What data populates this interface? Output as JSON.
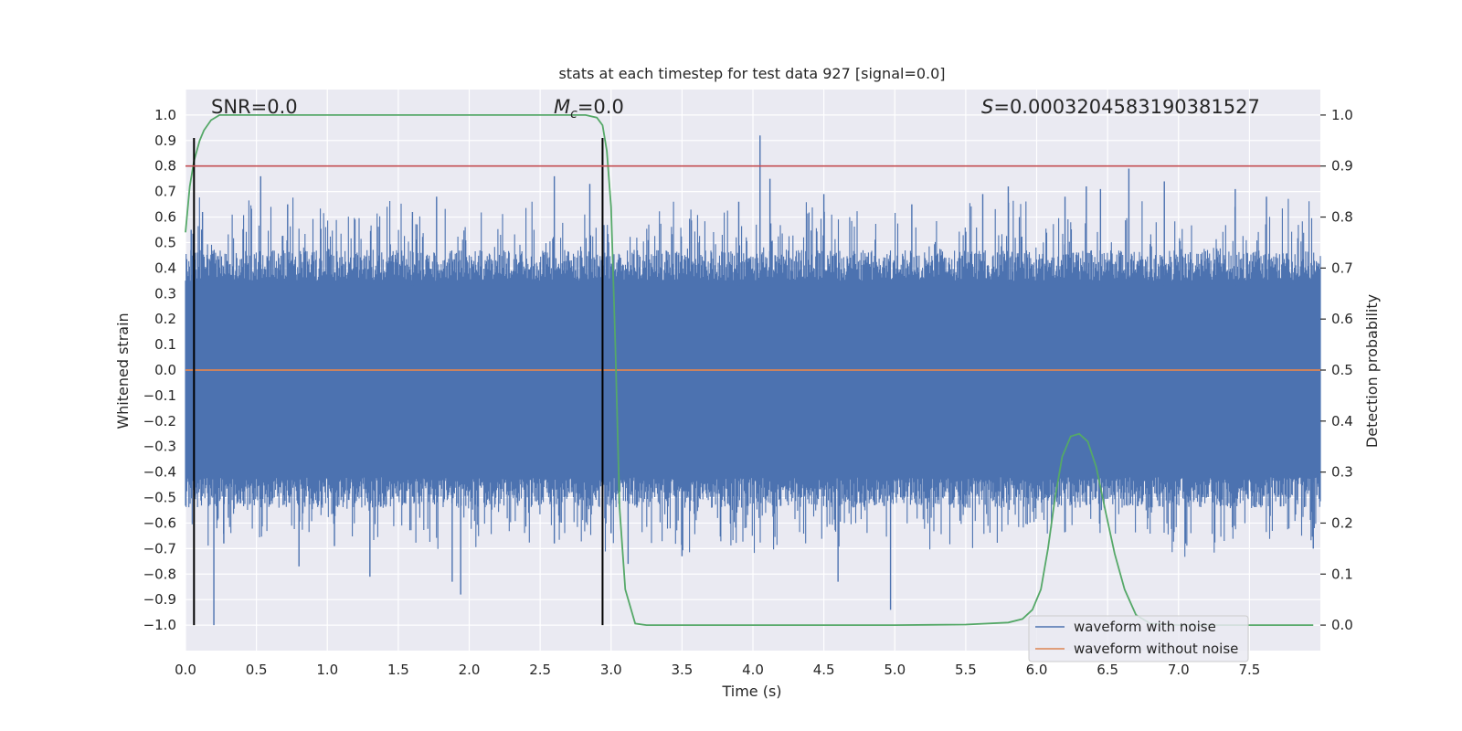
{
  "chart_data": {
    "type": "line",
    "title": "stats at each timestep for test data 927 [signal=0.0]",
    "xlabel": "Time (s)",
    "ylabel": "Whitened strain",
    "y2label": "Detection probability",
    "xlim": [
      0.0,
      8.0
    ],
    "ylim": [
      -1.1,
      1.1
    ],
    "y2lim": [
      -0.05,
      1.05
    ],
    "x_ticks": [
      0.0,
      0.5,
      1.0,
      1.5,
      2.0,
      2.5,
      3.0,
      3.5,
      4.0,
      4.5,
      5.0,
      5.5,
      6.0,
      6.5,
      7.0,
      7.5
    ],
    "y_ticks": [
      -1.0,
      -0.9,
      -0.8,
      -0.7,
      -0.6,
      -0.5,
      -0.4,
      -0.3,
      -0.2,
      -0.1,
      0.0,
      0.1,
      0.2,
      0.3,
      0.4,
      0.5,
      0.6,
      0.7,
      0.8,
      0.9,
      1.0
    ],
    "y2_ticks": [
      0.0,
      0.1,
      0.2,
      0.3,
      0.4,
      0.5,
      0.6,
      0.7,
      0.8,
      0.9,
      1.0
    ],
    "grid": true,
    "legend_position": "lower-right",
    "annotations": {
      "snr": "SNR=0.0",
      "mc_label": "M",
      "mc_subscript": "c",
      "mc_value": "=0.0",
      "s_label": "S",
      "s_value": "=0.0003204583190381527"
    },
    "series": [
      {
        "name": "waveform with noise",
        "color": "#4c72b0",
        "axis": "left",
        "style": "dense-noise",
        "envelope": {
          "x": [
            0.0,
            8.0
          ],
          "upper": 0.35,
          "lower": -0.42
        },
        "peaks": [
          {
            "x": 0.04,
            "y": 0.55
          },
          {
            "x": 0.12,
            "y": 0.62
          },
          {
            "x": 0.2,
            "y": -1.0
          },
          {
            "x": 0.27,
            "y": -0.68
          },
          {
            "x": 0.53,
            "y": 0.76
          },
          {
            "x": 0.72,
            "y": 0.65
          },
          {
            "x": 0.8,
            "y": -0.77
          },
          {
            "x": 1.05,
            "y": -0.69
          },
          {
            "x": 1.3,
            "y": -0.81
          },
          {
            "x": 1.6,
            "y": 0.62
          },
          {
            "x": 1.77,
            "y": 0.68
          },
          {
            "x": 1.88,
            "y": -0.83
          },
          {
            "x": 1.94,
            "y": -0.88
          },
          {
            "x": 2.6,
            "y": 0.76
          },
          {
            "x": 2.6,
            "y": -0.68
          },
          {
            "x": 2.85,
            "y": 0.73
          },
          {
            "x": 3.0,
            "y": -0.64
          },
          {
            "x": 3.12,
            "y": -0.76
          },
          {
            "x": 3.5,
            "y": -0.73
          },
          {
            "x": 3.9,
            "y": 0.66
          },
          {
            "x": 4.05,
            "y": 0.92
          },
          {
            "x": 4.12,
            "y": 0.75
          },
          {
            "x": 4.5,
            "y": 0.69
          },
          {
            "x": 4.6,
            "y": -0.83
          },
          {
            "x": 4.97,
            "y": -0.94
          },
          {
            "x": 5.12,
            "y": 0.65
          },
          {
            "x": 5.62,
            "y": 0.69
          },
          {
            "x": 5.8,
            "y": 0.72
          },
          {
            "x": 6.2,
            "y": 0.68
          },
          {
            "x": 6.35,
            "y": 0.72
          },
          {
            "x": 6.45,
            "y": 0.71
          },
          {
            "x": 6.65,
            "y": 0.79
          },
          {
            "x": 6.9,
            "y": 0.74
          },
          {
            "x": 7.05,
            "y": -0.68
          },
          {
            "x": 7.4,
            "y": 0.71
          },
          {
            "x": 7.62,
            "y": 0.68
          },
          {
            "x": 7.95,
            "y": -0.7
          }
        ]
      },
      {
        "name": "waveform without noise",
        "color": "#dd8452",
        "axis": "left",
        "x": [
          0.0,
          8.0
        ],
        "y": [
          0.0,
          0.0
        ]
      },
      {
        "name": "detection probability",
        "color": "#55a868",
        "axis": "right",
        "x": [
          0.0,
          0.03,
          0.06,
          0.1,
          0.13,
          0.18,
          0.24,
          0.3,
          0.38,
          0.5,
          1.0,
          2.0,
          2.5,
          2.72,
          2.82,
          2.9,
          2.94,
          2.97,
          3.0,
          3.03,
          3.06,
          3.1,
          3.17,
          3.25,
          3.5,
          4.0,
          5.0,
          5.5,
          5.8,
          5.9,
          5.97,
          6.03,
          6.08,
          6.13,
          6.18,
          6.24,
          6.3,
          6.36,
          6.42,
          6.48,
          6.55,
          6.62,
          6.7,
          6.8,
          7.0,
          7.5,
          7.95
        ],
        "y": [
          0.77,
          0.86,
          0.91,
          0.95,
          0.97,
          0.99,
          1.0,
          1.0,
          1.0,
          1.0,
          1.0,
          1.0,
          1.0,
          1.0,
          1.0,
          0.995,
          0.98,
          0.93,
          0.82,
          0.55,
          0.23,
          0.07,
          0.003,
          0.0,
          0.0,
          0.0,
          0.0,
          0.001,
          0.005,
          0.012,
          0.03,
          0.07,
          0.15,
          0.25,
          0.33,
          0.37,
          0.375,
          0.36,
          0.31,
          0.23,
          0.14,
          0.07,
          0.02,
          0.003,
          0.0,
          0.0,
          0.0
        ]
      }
    ],
    "reference_lines": [
      {
        "orientation": "vertical",
        "x": 0.06,
        "y_range": [
          -1.0,
          0.91
        ],
        "color": "#000000"
      },
      {
        "orientation": "vertical",
        "x": 2.94,
        "y_range": [
          -1.0,
          0.91
        ],
        "color": "#000000"
      },
      {
        "orientation": "horizontal",
        "y2": 0.9,
        "color": "#c44e52"
      }
    ],
    "legend": [
      "waveform with noise",
      "waveform without noise"
    ]
  }
}
